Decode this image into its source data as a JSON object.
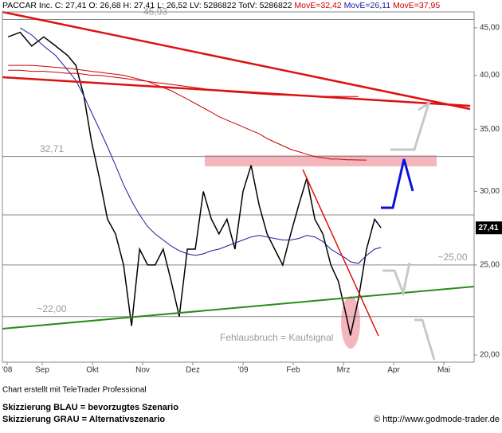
{
  "chart_data": {
    "type": "line",
    "log_scale": true,
    "header": {
      "quote": "PACCAR Inc. C: 27,41 O: 26,68 H: 27,41 L: 26,52 LV: 5286822 TotV: 5286822"
    },
    "x": [
      0.32,
      0.56,
      0.79,
      1.03,
      1.27,
      1.51,
      1.67,
      1.83,
      1.98,
      2.14,
      2.3,
      2.46,
      2.62,
      2.78,
      2.94,
      3.1,
      3.25,
      3.41,
      3.57,
      3.73,
      3.89,
      4.05,
      4.21,
      4.37,
      4.52,
      4.68,
      4.84,
      5.0,
      5.16,
      5.32,
      5.48,
      5.63,
      5.79,
      5.95,
      6.11,
      6.27,
      6.43,
      6.59,
      6.75,
      6.9,
      7.06,
      7.14,
      7.3,
      7.46,
      7.62,
      7.75
    ],
    "series": [
      {
        "color": "#000000",
        "values": [
          44,
          44.5,
          43,
          44,
          43,
          42,
          41,
          38,
          34,
          31,
          28,
          27,
          25,
          21.5,
          26,
          25,
          25,
          26,
          24,
          22,
          26,
          26,
          30,
          28,
          27,
          28,
          26,
          30,
          32,
          29,
          27,
          26,
          25,
          27,
          29,
          31,
          28,
          27,
          25,
          24,
          22,
          21,
          23,
          26,
          28,
          27.41
        ]
      },
      {
        "name": "MovE=32,42",
        "color": "#cc0000",
        "values": [
          41,
          41,
          41,
          40.9,
          40.8,
          40.7,
          40.6,
          40.5,
          40.4,
          40.3,
          40.2,
          40.1,
          40,
          39.8,
          39.6,
          39.4,
          39.1,
          38.8,
          38.5,
          38.1,
          37.7,
          37.3,
          36.9,
          36.5,
          36.1,
          35.8,
          35.5,
          35.2,
          34.9,
          34.6,
          34.2,
          33.9,
          33.6,
          33.3,
          33.1,
          32.9,
          32.7,
          32.6,
          32.5,
          32.5,
          32.45,
          32.44,
          32.43,
          32.42,
          null,
          null
        ]
      },
      {
        "name": "MovE=26,11",
        "color": "#1a1aa0",
        "values": [
          null,
          45,
          44.2,
          43,
          42,
          40.5,
          39.5,
          38,
          36.5,
          35,
          33.5,
          32,
          30.5,
          29.3,
          28.3,
          27.5,
          27,
          26.6,
          26.2,
          25.9,
          25.7,
          25.6,
          25.7,
          25.9,
          26,
          26.2,
          26.4,
          26.6,
          26.8,
          26.9,
          26.8,
          26.7,
          26.6,
          26.6,
          26.7,
          26.9,
          26.8,
          26.5,
          26,
          25.7,
          25.4,
          25.2,
          25.1,
          25.6,
          26,
          26.11
        ]
      },
      {
        "name": "MovE=37,95",
        "color": "#cc0000",
        "values": [
          40.5,
          40.5,
          40.4,
          40.4,
          40.3,
          40.2,
          40.2,
          40.1,
          40,
          40,
          39.9,
          39.8,
          39.7,
          39.6,
          39.5,
          39.4,
          39.3,
          39.2,
          39.1,
          39,
          38.9,
          38.8,
          38.7,
          38.6,
          38.5,
          38.4,
          38.35,
          38.3,
          38.25,
          38.2,
          38.15,
          38.1,
          38.08,
          38.05,
          38.02,
          38,
          37.98,
          37.97,
          37.96,
          37.96,
          37.95,
          37.95,
          37.95,
          null,
          null,
          null
        ]
      }
    ],
    "xlim": [
      0.2,
      9.6
    ],
    "xticks": [
      {
        "value": 0.3,
        "label": "'08"
      },
      {
        "value": 1,
        "label": "Sep"
      },
      {
        "value": 2,
        "label": "Okt"
      },
      {
        "value": 3,
        "label": "Nov"
      },
      {
        "value": 4,
        "label": "Dez"
      },
      {
        "value": 5,
        "label": "'09"
      },
      {
        "value": 6,
        "label": "Feb"
      },
      {
        "value": 7,
        "label": "Mrz"
      },
      {
        "value": 8,
        "label": "Apr"
      },
      {
        "value": 9,
        "label": "Mai"
      }
    ],
    "ylim": [
      19.65,
      46.8
    ],
    "yticks": [
      {
        "value": 20,
        "label": "20,00"
      },
      {
        "value": 25,
        "label": "25,00"
      },
      {
        "value": 30,
        "label": "30,00"
      },
      {
        "value": 35,
        "label": "35,00"
      },
      {
        "value": 40,
        "label": "40,00"
      },
      {
        "value": 45,
        "label": "45,00"
      }
    ],
    "last_price": {
      "value": 27.41,
      "label": "27,41"
    },
    "levels": [
      {
        "value": 45.93,
        "label": "45,93"
      },
      {
        "value": 32.71,
        "label": "32,71"
      },
      {
        "value": 25,
        "label": "~25,00"
      },
      {
        "value": 22,
        "label": "~22,00"
      }
    ],
    "annotation": "Fehlausbruch = Kaufsignal",
    "footer": {
      "credit": "Chart erstellt mit TeleTrader Professional",
      "blue": "Skizzierung BLAU = bevorzugtes Szenario",
      "grey": "Skizzierung GRAU = Alternativszenario",
      "source": "© http://www.godmode-trader.de"
    }
  }
}
